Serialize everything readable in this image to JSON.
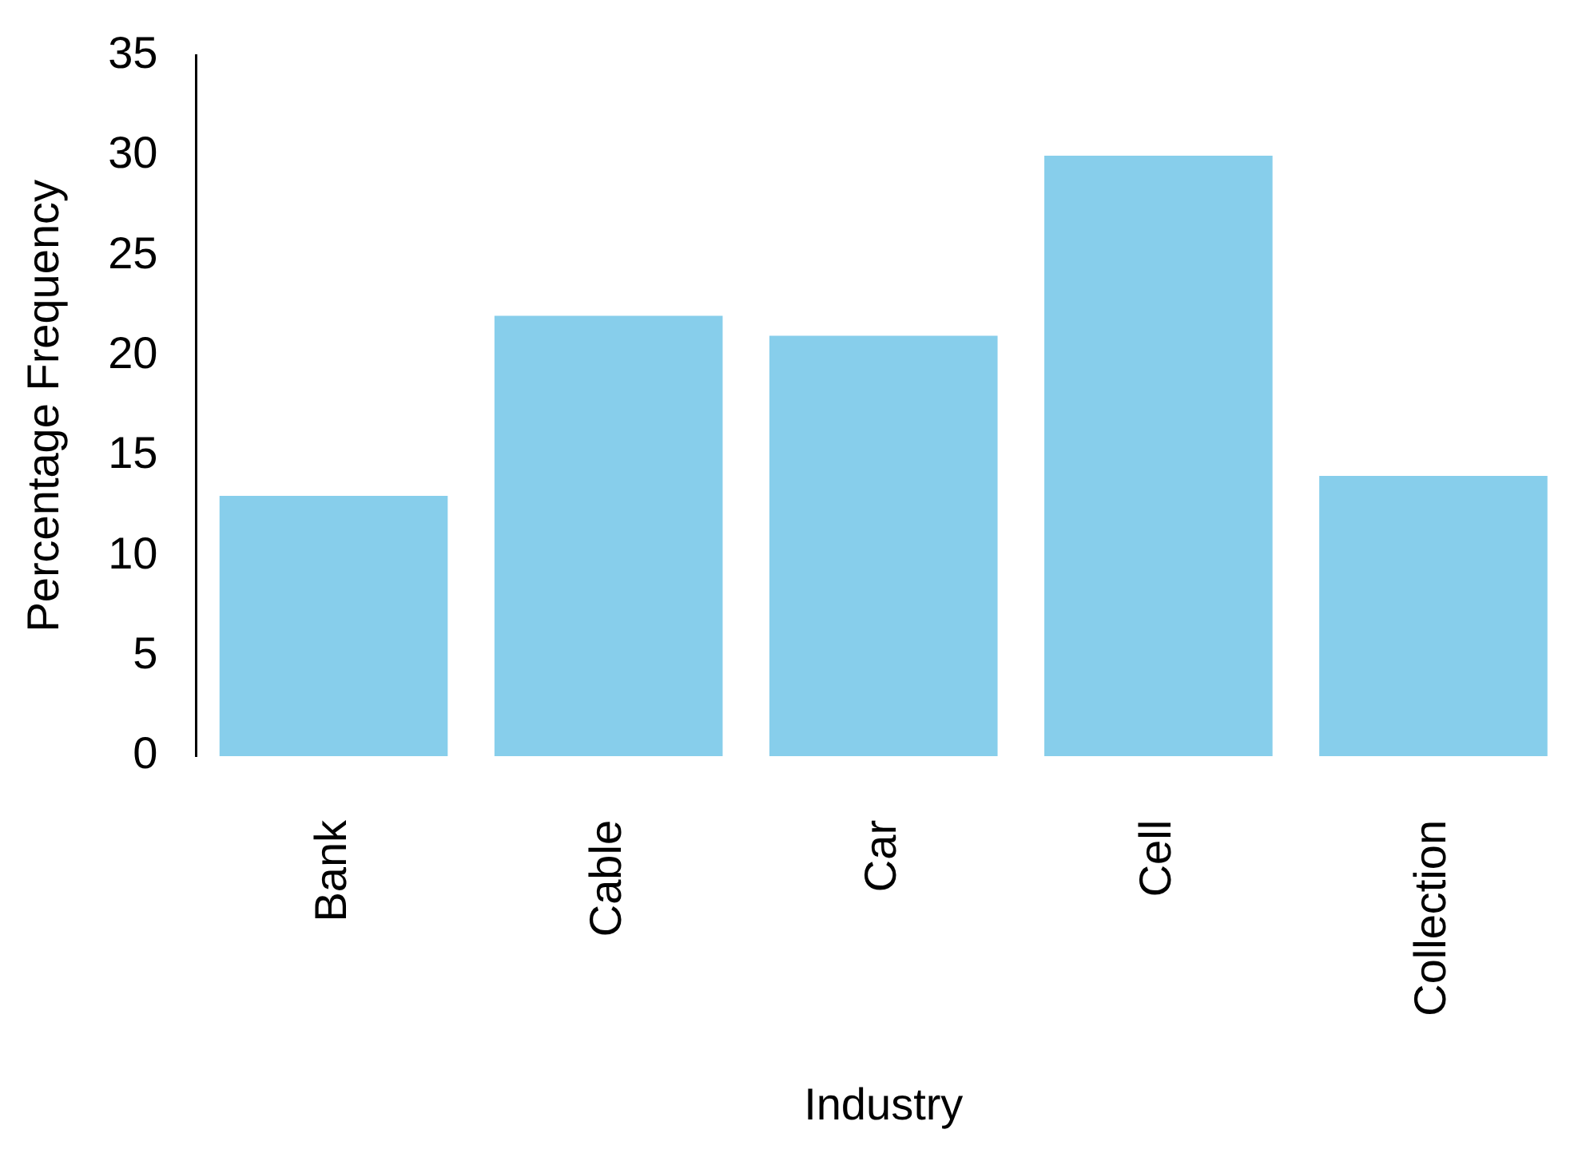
{
  "chart_data": {
    "type": "bar",
    "xlabel": "Industry",
    "ylabel": "Percentage Frequency",
    "categories": [
      "Bank",
      "Cable",
      "Car",
      "Cell",
      "Collection"
    ],
    "values": [
      13,
      22,
      21,
      30,
      14
    ],
    "color": "#87ceeb",
    "ylim": [
      0,
      35
    ],
    "yticks": [
      0,
      5,
      10,
      15,
      20,
      25,
      30,
      35
    ],
    "grid": false,
    "legend": false
  }
}
